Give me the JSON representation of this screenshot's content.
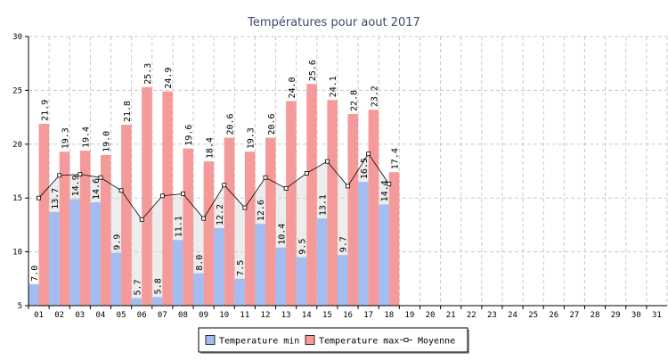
{
  "chart_data": {
    "type": "bar",
    "title": "Températures pour aout 2017",
    "xlabel": "",
    "ylabel": "",
    "ylim": [
      5,
      30
    ],
    "yticks": [
      5,
      10,
      15,
      20,
      25,
      30
    ],
    "grid": true,
    "legend_position": "bottom",
    "categories": [
      "01",
      "02",
      "03",
      "04",
      "05",
      "06",
      "07",
      "08",
      "09",
      "10",
      "11",
      "12",
      "13",
      "14",
      "15",
      "16",
      "17",
      "18",
      "19",
      "20",
      "21",
      "22",
      "23",
      "24",
      "25",
      "26",
      "27",
      "28",
      "29",
      "30",
      "31"
    ],
    "series": [
      {
        "name": "Temperature min",
        "type": "bar",
        "color": "#a4bdf0",
        "values": [
          7.0,
          13.7,
          14.9,
          14.6,
          9.9,
          5.7,
          5.8,
          11.1,
          8.0,
          12.2,
          7.5,
          12.6,
          10.4,
          9.5,
          13.1,
          9.7,
          16.5,
          14.4,
          null,
          null,
          null,
          null,
          null,
          null,
          null,
          null,
          null,
          null,
          null,
          null,
          null
        ]
      },
      {
        "name": "Temperature max",
        "type": "bar",
        "color": "#f59a9a",
        "values": [
          21.9,
          19.3,
          19.4,
          19.0,
          21.8,
          25.3,
          24.9,
          19.6,
          18.4,
          20.6,
          19.3,
          20.6,
          24.0,
          25.6,
          24.1,
          22.8,
          23.2,
          17.4,
          null,
          null,
          null,
          null,
          null,
          null,
          null,
          null,
          null,
          null,
          null,
          null,
          null
        ]
      },
      {
        "name": "Moyenne",
        "type": "line",
        "color": "#000000",
        "values": [
          15.0,
          17.1,
          17.2,
          16.9,
          15.7,
          13.0,
          15.2,
          15.4,
          13.1,
          16.2,
          14.1,
          16.9,
          15.9,
          17.3,
          18.4,
          16.1,
          19.1,
          16.3,
          null,
          null,
          null,
          null,
          null,
          null,
          null,
          null,
          null,
          null,
          null,
          null,
          null
        ]
      }
    ]
  }
}
